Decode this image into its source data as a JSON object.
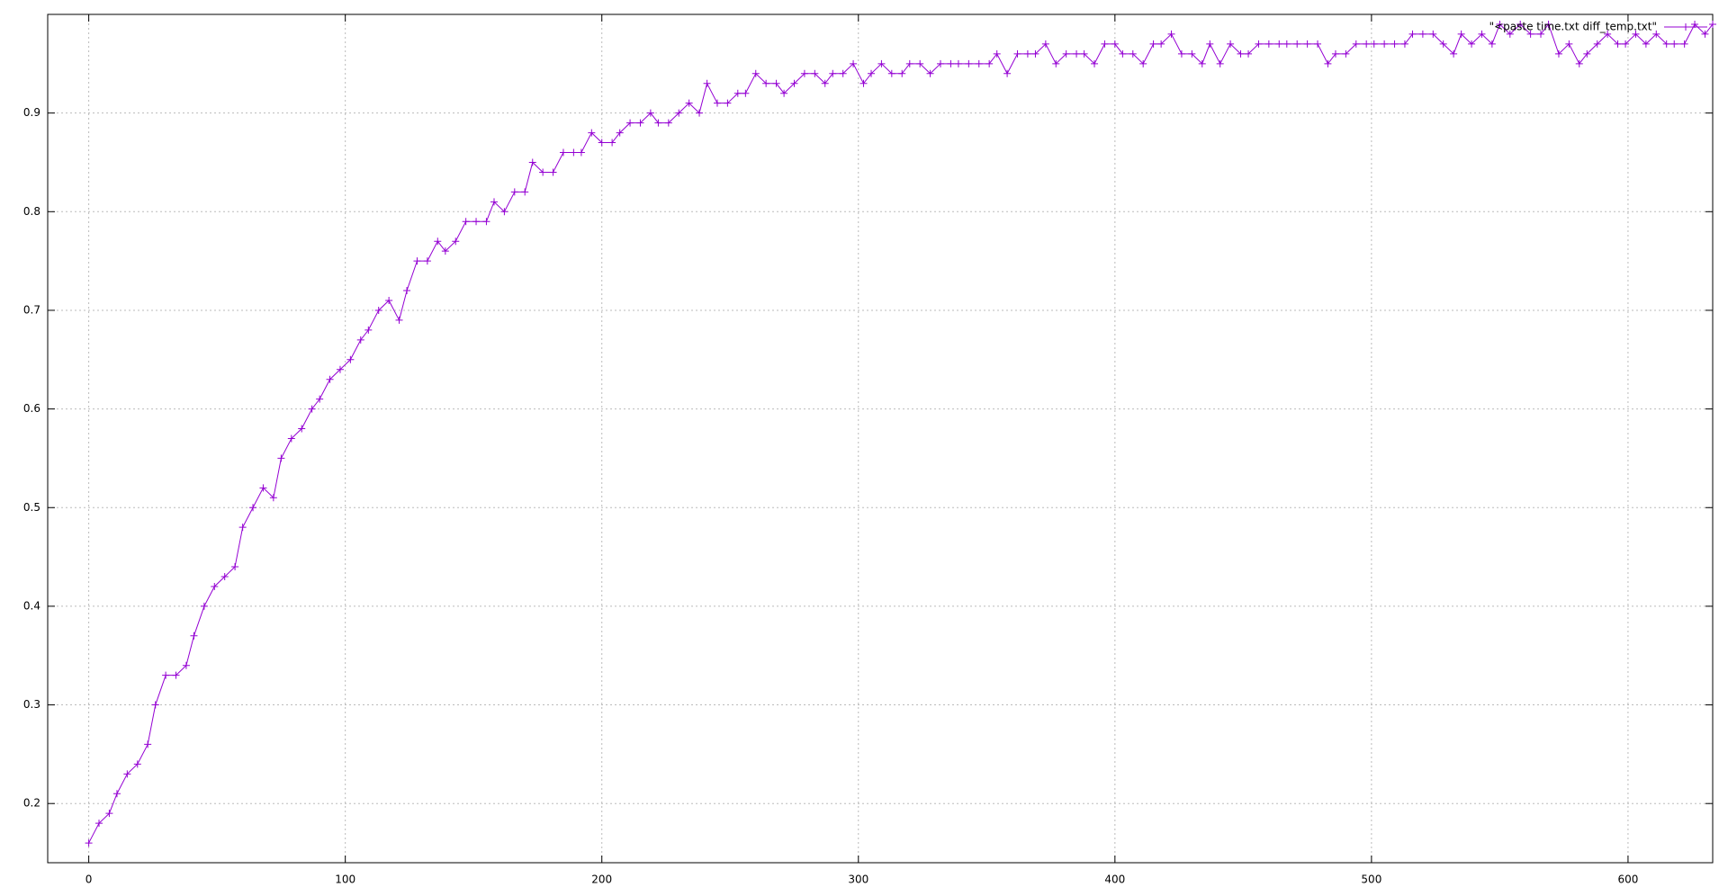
{
  "chart_data": {
    "type": "line",
    "x": [
      0,
      4,
      8,
      11,
      15,
      19,
      23,
      26,
      30,
      34,
      38,
      41,
      45,
      49,
      53,
      57,
      60,
      64,
      68,
      72,
      75,
      79,
      83,
      87,
      90,
      94,
      98,
      102,
      106,
      109,
      113,
      117,
      121,
      124,
      128,
      132,
      136,
      139,
      143,
      147,
      151,
      155,
      158,
      162,
      166,
      170,
      173,
      177,
      181,
      185,
      189,
      192,
      196,
      200,
      204,
      207,
      211,
      215,
      219,
      222,
      226,
      230,
      234,
      238,
      241,
      245,
      249,
      253,
      256,
      260,
      264,
      268,
      271,
      275,
      279,
      283,
      287,
      290,
      294,
      298,
      302,
      305,
      309,
      313,
      317,
      320,
      324,
      328,
      332,
      336,
      339,
      343,
      347,
      351,
      354,
      358,
      362,
      366,
      369,
      373,
      377,
      381,
      385,
      388,
      392,
      396,
      400,
      403,
      407,
      411,
      415,
      418,
      422,
      426,
      430,
      434,
      437,
      441,
      445,
      449,
      452,
      456,
      460,
      464,
      467,
      471,
      475,
      479,
      483,
      486,
      490,
      494,
      498,
      501,
      505,
      509,
      513,
      516,
      520,
      524,
      528,
      532,
      535,
      539,
      543,
      547,
      550,
      554,
      558,
      562,
      566,
      569,
      573,
      577,
      581,
      584,
      588,
      592,
      596,
      599,
      603,
      607,
      611,
      615,
      618,
      622,
      626,
      630,
      633
    ],
    "series": [
      {
        "name": "\"<paste time.txt diff_temp.txt\"",
        "color": "#9400d3",
        "values": [
          0.16,
          0.18,
          0.19,
          0.21,
          0.23,
          0.24,
          0.26,
          0.3,
          0.33,
          0.33,
          0.34,
          0.37,
          0.4,
          0.42,
          0.43,
          0.44,
          0.48,
          0.5,
          0.52,
          0.51,
          0.55,
          0.57,
          0.58,
          0.6,
          0.61,
          0.63,
          0.64,
          0.65,
          0.67,
          0.68,
          0.7,
          0.71,
          0.69,
          0.72,
          0.75,
          0.75,
          0.77,
          0.76,
          0.77,
          0.79,
          0.79,
          0.79,
          0.81,
          0.8,
          0.82,
          0.82,
          0.85,
          0.84,
          0.84,
          0.86,
          0.86,
          0.86,
          0.88,
          0.87,
          0.87,
          0.88,
          0.89,
          0.89,
          0.9,
          0.89,
          0.89,
          0.9,
          0.91,
          0.9,
          0.93,
          0.91,
          0.91,
          0.92,
          0.92,
          0.94,
          0.93,
          0.93,
          0.92,
          0.93,
          0.94,
          0.94,
          0.93,
          0.94,
          0.94,
          0.95,
          0.93,
          0.94,
          0.95,
          0.94,
          0.94,
          0.95,
          0.95,
          0.94,
          0.95,
          0.95,
          0.95,
          0.95,
          0.95,
          0.95,
          0.96,
          0.94,
          0.96,
          0.96,
          0.96,
          0.97,
          0.95,
          0.96,
          0.96,
          0.96,
          0.95,
          0.97,
          0.97,
          0.96,
          0.96,
          0.95,
          0.97,
          0.97,
          0.98,
          0.96,
          0.96,
          0.95,
          0.97,
          0.95,
          0.97,
          0.96,
          0.96,
          0.97,
          0.97,
          0.97,
          0.97,
          0.97,
          0.97,
          0.97,
          0.95,
          0.96,
          0.96,
          0.97,
          0.97,
          0.97,
          0.97,
          0.97,
          0.97,
          0.98,
          0.98,
          0.98,
          0.97,
          0.96,
          0.98,
          0.97,
          0.98,
          0.97,
          0.99,
          0.98,
          0.99,
          0.98,
          0.98,
          0.99,
          0.96,
          0.97,
          0.95,
          0.96,
          0.97,
          0.98,
          0.97,
          0.97,
          0.98,
          0.97,
          0.98,
          0.97,
          0.97,
          0.97,
          0.99,
          0.98,
          0.99
        ]
      }
    ],
    "xlim": [
      -16,
      633
    ],
    "ylim": [
      0.14,
      1.0
    ],
    "xticks": [
      0,
      100,
      200,
      300,
      400,
      500,
      600
    ],
    "yticks": [
      0.2,
      0.3,
      0.4,
      0.5,
      0.6,
      0.7,
      0.8,
      0.9
    ],
    "grid": true,
    "legend": "top-right"
  }
}
